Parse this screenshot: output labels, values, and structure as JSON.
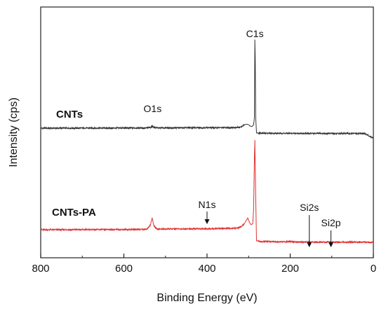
{
  "chart_data": {
    "type": "line",
    "title": "",
    "xlabel": "Binding Energy (eV)",
    "ylabel": "Intensity (cps)",
    "xlim": [
      800,
      0
    ],
    "x_reversed": true,
    "xticks": [
      800,
      600,
      400,
      200,
      0
    ],
    "yticks_shown": false,
    "grid": false,
    "legend": "none",
    "series": [
      {
        "name": "CNTs",
        "color": "#333333",
        "points": [
          [
            800,
            0.0
          ],
          [
            700,
            0.01
          ],
          [
            600,
            0.03
          ],
          [
            545,
            0.04
          ],
          [
            535,
            0.14
          ],
          [
            531,
            0.34
          ],
          [
            527,
            0.12
          ],
          [
            520,
            0.05
          ],
          [
            450,
            0.07
          ],
          [
            400,
            0.09
          ],
          [
            350,
            0.1
          ],
          [
            320,
            0.16
          ],
          [
            310,
            0.58
          ],
          [
            305,
            0.72
          ],
          [
            300,
            0.62
          ],
          [
            296,
            0.35
          ],
          [
            292,
            0.3
          ],
          [
            288,
            0.6
          ],
          [
            286,
            1.9
          ],
          [
            285,
            15.8
          ],
          [
            284,
            12.0
          ],
          [
            283,
            2.0
          ],
          [
            281,
            -0.85
          ],
          [
            275,
            -0.9
          ],
          [
            200,
            -0.93
          ],
          [
            100,
            -0.95
          ],
          [
            20,
            -0.96
          ],
          [
            10,
            -1.4
          ],
          [
            0,
            -1.8
          ]
        ]
      },
      {
        "name": "CNTs-PA",
        "color": "#e03030",
        "points": [
          [
            800,
            0.0
          ],
          [
            700,
            0.02
          ],
          [
            600,
            0.05
          ],
          [
            545,
            0.07
          ],
          [
            536,
            0.9
          ],
          [
            532,
            2.15
          ],
          [
            528,
            0.7
          ],
          [
            520,
            0.12
          ],
          [
            450,
            0.15
          ],
          [
            400,
            0.18
          ],
          [
            330,
            0.25
          ],
          [
            318,
            0.5
          ],
          [
            310,
            1.15
          ],
          [
            302,
            2.1
          ],
          [
            298,
            1.3
          ],
          [
            294,
            0.9
          ],
          [
            290,
            1.1
          ],
          [
            288,
            3.5
          ],
          [
            286,
            13.0
          ],
          [
            285,
            16.0
          ],
          [
            284,
            11.0
          ],
          [
            283,
            6.0
          ],
          [
            281,
            -2.0
          ],
          [
            270,
            -2.1
          ],
          [
            200,
            -2.15
          ],
          [
            150,
            -2.2
          ],
          [
            100,
            -2.2
          ],
          [
            0,
            -2.25
          ]
        ]
      }
    ],
    "annotations": [
      {
        "text": "C1s",
        "x": 285
      },
      {
        "text": "O1s",
        "x": 531
      },
      {
        "text": "N1s",
        "x": 400,
        "arrow": true
      },
      {
        "text": "Si2s",
        "x": 154,
        "arrow": true
      },
      {
        "text": "Si2p",
        "x": 102,
        "arrow": true
      }
    ]
  }
}
